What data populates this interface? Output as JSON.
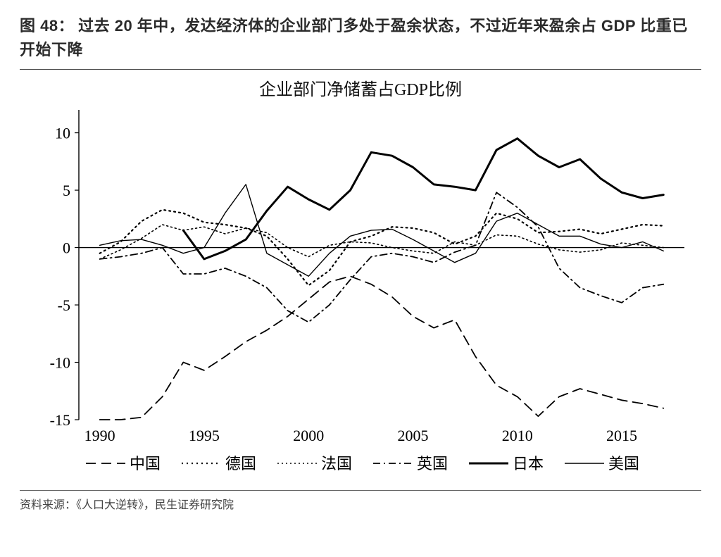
{
  "figure_label": "图 48：",
  "caption_text": "过去 20 年中，发达经济体的企业部门多处于盈余状态，不过近年来盈余占 GDP 比重已开始下降",
  "chart": {
    "type": "line",
    "title": "企业部门净储蓄占GDP比例",
    "title_fontsize": 24,
    "background_color": "#ffffff",
    "axis_color": "#000000",
    "tick_fontsize": 22,
    "x": {
      "min": 1989,
      "max": 2018,
      "ticks": [
        1990,
        1995,
        2000,
        2005,
        2010,
        2015
      ],
      "tick_labels": [
        "1990",
        "1995",
        "2000",
        "2005",
        "2010",
        "2015"
      ]
    },
    "y": {
      "min": -15,
      "max": 12,
      "ticks": [
        -15,
        -10,
        -5,
        0,
        5,
        10
      ],
      "tick_labels": [
        "-15",
        "-10",
        "-5",
        "0",
        "5",
        "10"
      ]
    },
    "series": [
      {
        "name": "中国",
        "label": "中国",
        "color": "#000000",
        "width": 1.8,
        "dash": "14,8",
        "data": [
          [
            1990,
            -15
          ],
          [
            1991,
            -15
          ],
          [
            1992,
            -14.8
          ],
          [
            1993,
            -13.0
          ],
          [
            1994,
            -10.0
          ],
          [
            1995,
            -10.7
          ],
          [
            1996,
            -9.5
          ],
          [
            1997,
            -8.2
          ],
          [
            1998,
            -7.2
          ],
          [
            1999,
            -6.0
          ],
          [
            2000,
            -4.5
          ],
          [
            2001,
            -3.0
          ],
          [
            2002,
            -2.5
          ],
          [
            2003,
            -3.2
          ],
          [
            2004,
            -4.3
          ],
          [
            2005,
            -6.0
          ],
          [
            2006,
            -7.0
          ],
          [
            2007,
            -6.3
          ],
          [
            2008,
            -9.5
          ],
          [
            2009,
            -12.0
          ],
          [
            2010,
            -13.0
          ],
          [
            2011,
            -14.7
          ],
          [
            2012,
            -13.0
          ],
          [
            2013,
            -12.3
          ],
          [
            2014,
            -12.8
          ],
          [
            2015,
            -13.3
          ],
          [
            2016,
            -13.6
          ],
          [
            2017,
            -14.0
          ]
        ]
      },
      {
        "name": "德国",
        "label": "德国",
        "color": "#000000",
        "width": 2.2,
        "dash": "2,5",
        "data": [
          [
            1990,
            -0.5
          ],
          [
            1991,
            0.5
          ],
          [
            1992,
            2.3
          ],
          [
            1993,
            3.3
          ],
          [
            1994,
            3.0
          ],
          [
            1995,
            2.2
          ],
          [
            1996,
            2.0
          ],
          [
            1997,
            1.7
          ],
          [
            1998,
            1.0
          ],
          [
            1999,
            -1.0
          ],
          [
            2000,
            -3.3
          ],
          [
            2001,
            -2.0
          ],
          [
            2002,
            0.5
          ],
          [
            2003,
            1.0
          ],
          [
            2004,
            1.8
          ],
          [
            2005,
            1.7
          ],
          [
            2006,
            1.3
          ],
          [
            2007,
            0.3
          ],
          [
            2008,
            1.0
          ],
          [
            2009,
            3.0
          ],
          [
            2010,
            2.5
          ],
          [
            2011,
            1.3
          ],
          [
            2012,
            1.4
          ],
          [
            2013,
            1.6
          ],
          [
            2014,
            1.2
          ],
          [
            2015,
            1.6
          ],
          [
            2016,
            2.0
          ],
          [
            2017,
            1.9
          ]
        ]
      },
      {
        "name": "法国",
        "label": "法国",
        "color": "#000000",
        "width": 1.6,
        "dash": "2,4",
        "data": [
          [
            1990,
            -1.0
          ],
          [
            1991,
            -0.2
          ],
          [
            1992,
            0.8
          ],
          [
            1993,
            2.0
          ],
          [
            1994,
            1.5
          ],
          [
            1995,
            1.8
          ],
          [
            1996,
            1.2
          ],
          [
            1997,
            1.7
          ],
          [
            1998,
            1.3
          ],
          [
            1999,
            0.0
          ],
          [
            2000,
            -0.8
          ],
          [
            2001,
            0.2
          ],
          [
            2002,
            0.5
          ],
          [
            2003,
            0.4
          ],
          [
            2004,
            0.0
          ],
          [
            2005,
            -0.3
          ],
          [
            2006,
            -0.5
          ],
          [
            2007,
            0.5
          ],
          [
            2008,
            0.2
          ],
          [
            2009,
            1.1
          ],
          [
            2010,
            1.0
          ],
          [
            2011,
            0.3
          ],
          [
            2012,
            -0.2
          ],
          [
            2013,
            -0.4
          ],
          [
            2014,
            -0.2
          ],
          [
            2015,
            0.4
          ],
          [
            2016,
            0.2
          ],
          [
            2017,
            0.0
          ]
        ]
      },
      {
        "name": "英国",
        "label": "英国",
        "color": "#000000",
        "width": 1.8,
        "dash": "10,5,2,5",
        "data": [
          [
            1990,
            -1.0
          ],
          [
            1991,
            -0.8
          ],
          [
            1992,
            -0.5
          ],
          [
            1993,
            0.0
          ],
          [
            1994,
            -2.3
          ],
          [
            1995,
            -2.3
          ],
          [
            1996,
            -1.8
          ],
          [
            1997,
            -2.5
          ],
          [
            1998,
            -3.5
          ],
          [
            1999,
            -5.5
          ],
          [
            2000,
            -6.5
          ],
          [
            2001,
            -5.0
          ],
          [
            2002,
            -2.8
          ],
          [
            2003,
            -0.8
          ],
          [
            2004,
            -0.5
          ],
          [
            2005,
            -0.8
          ],
          [
            2006,
            -1.3
          ],
          [
            2007,
            -0.4
          ],
          [
            2008,
            0.2
          ],
          [
            2009,
            4.8
          ],
          [
            2010,
            3.5
          ],
          [
            2011,
            1.8
          ],
          [
            2012,
            -1.8
          ],
          [
            2013,
            -3.5
          ],
          [
            2014,
            -4.2
          ],
          [
            2015,
            -4.8
          ],
          [
            2016,
            -3.5
          ],
          [
            2017,
            -3.2
          ]
        ]
      },
      {
        "name": "日本",
        "label": "日本",
        "color": "#000000",
        "width": 3.0,
        "dash": "",
        "data": [
          [
            1994,
            1.5
          ],
          [
            1995,
            -1.0
          ],
          [
            1996,
            -0.3
          ],
          [
            1997,
            0.7
          ],
          [
            1998,
            3.2
          ],
          [
            1999,
            5.3
          ],
          [
            2000,
            4.2
          ],
          [
            2001,
            3.3
          ],
          [
            2002,
            5.0
          ],
          [
            2003,
            8.3
          ],
          [
            2004,
            8.0
          ],
          [
            2005,
            7.0
          ],
          [
            2006,
            5.5
          ],
          [
            2007,
            5.3
          ],
          [
            2008,
            5.0
          ],
          [
            2009,
            8.5
          ],
          [
            2010,
            9.5
          ],
          [
            2011,
            8.0
          ],
          [
            2012,
            7.0
          ],
          [
            2013,
            7.7
          ],
          [
            2014,
            6.0
          ],
          [
            2015,
            4.8
          ],
          [
            2016,
            4.3
          ],
          [
            2017,
            4.6
          ]
        ]
      },
      {
        "name": "美国",
        "label": "美国",
        "color": "#000000",
        "width": 1.4,
        "dash": "",
        "data": [
          [
            1990,
            0.2
          ],
          [
            1991,
            0.6
          ],
          [
            1992,
            0.7
          ],
          [
            1993,
            0.2
          ],
          [
            1994,
            -0.5
          ],
          [
            1995,
            0.0
          ],
          [
            1996,
            3.0
          ],
          [
            1997,
            5.5
          ],
          [
            1998,
            -0.5
          ],
          [
            1999,
            -1.5
          ],
          [
            2000,
            -2.5
          ],
          [
            2001,
            -0.5
          ],
          [
            2002,
            1.0
          ],
          [
            2003,
            1.5
          ],
          [
            2004,
            1.6
          ],
          [
            2005,
            0.7
          ],
          [
            2006,
            -0.3
          ],
          [
            2007,
            -1.3
          ],
          [
            2008,
            -0.5
          ],
          [
            2009,
            2.3
          ],
          [
            2010,
            3.0
          ],
          [
            2011,
            2.0
          ],
          [
            2012,
            1.0
          ],
          [
            2013,
            1.0
          ],
          [
            2014,
            0.3
          ],
          [
            2015,
            0.0
          ],
          [
            2016,
            0.5
          ],
          [
            2017,
            -0.3
          ]
        ]
      }
    ],
    "legend": {
      "fontsize": 22,
      "items": [
        "中国",
        "德国",
        "法国",
        "英国",
        "日本",
        "美国"
      ]
    }
  },
  "source_label": "资料来源：",
  "source_text": "《人口大逆转》，民生证券研究院"
}
